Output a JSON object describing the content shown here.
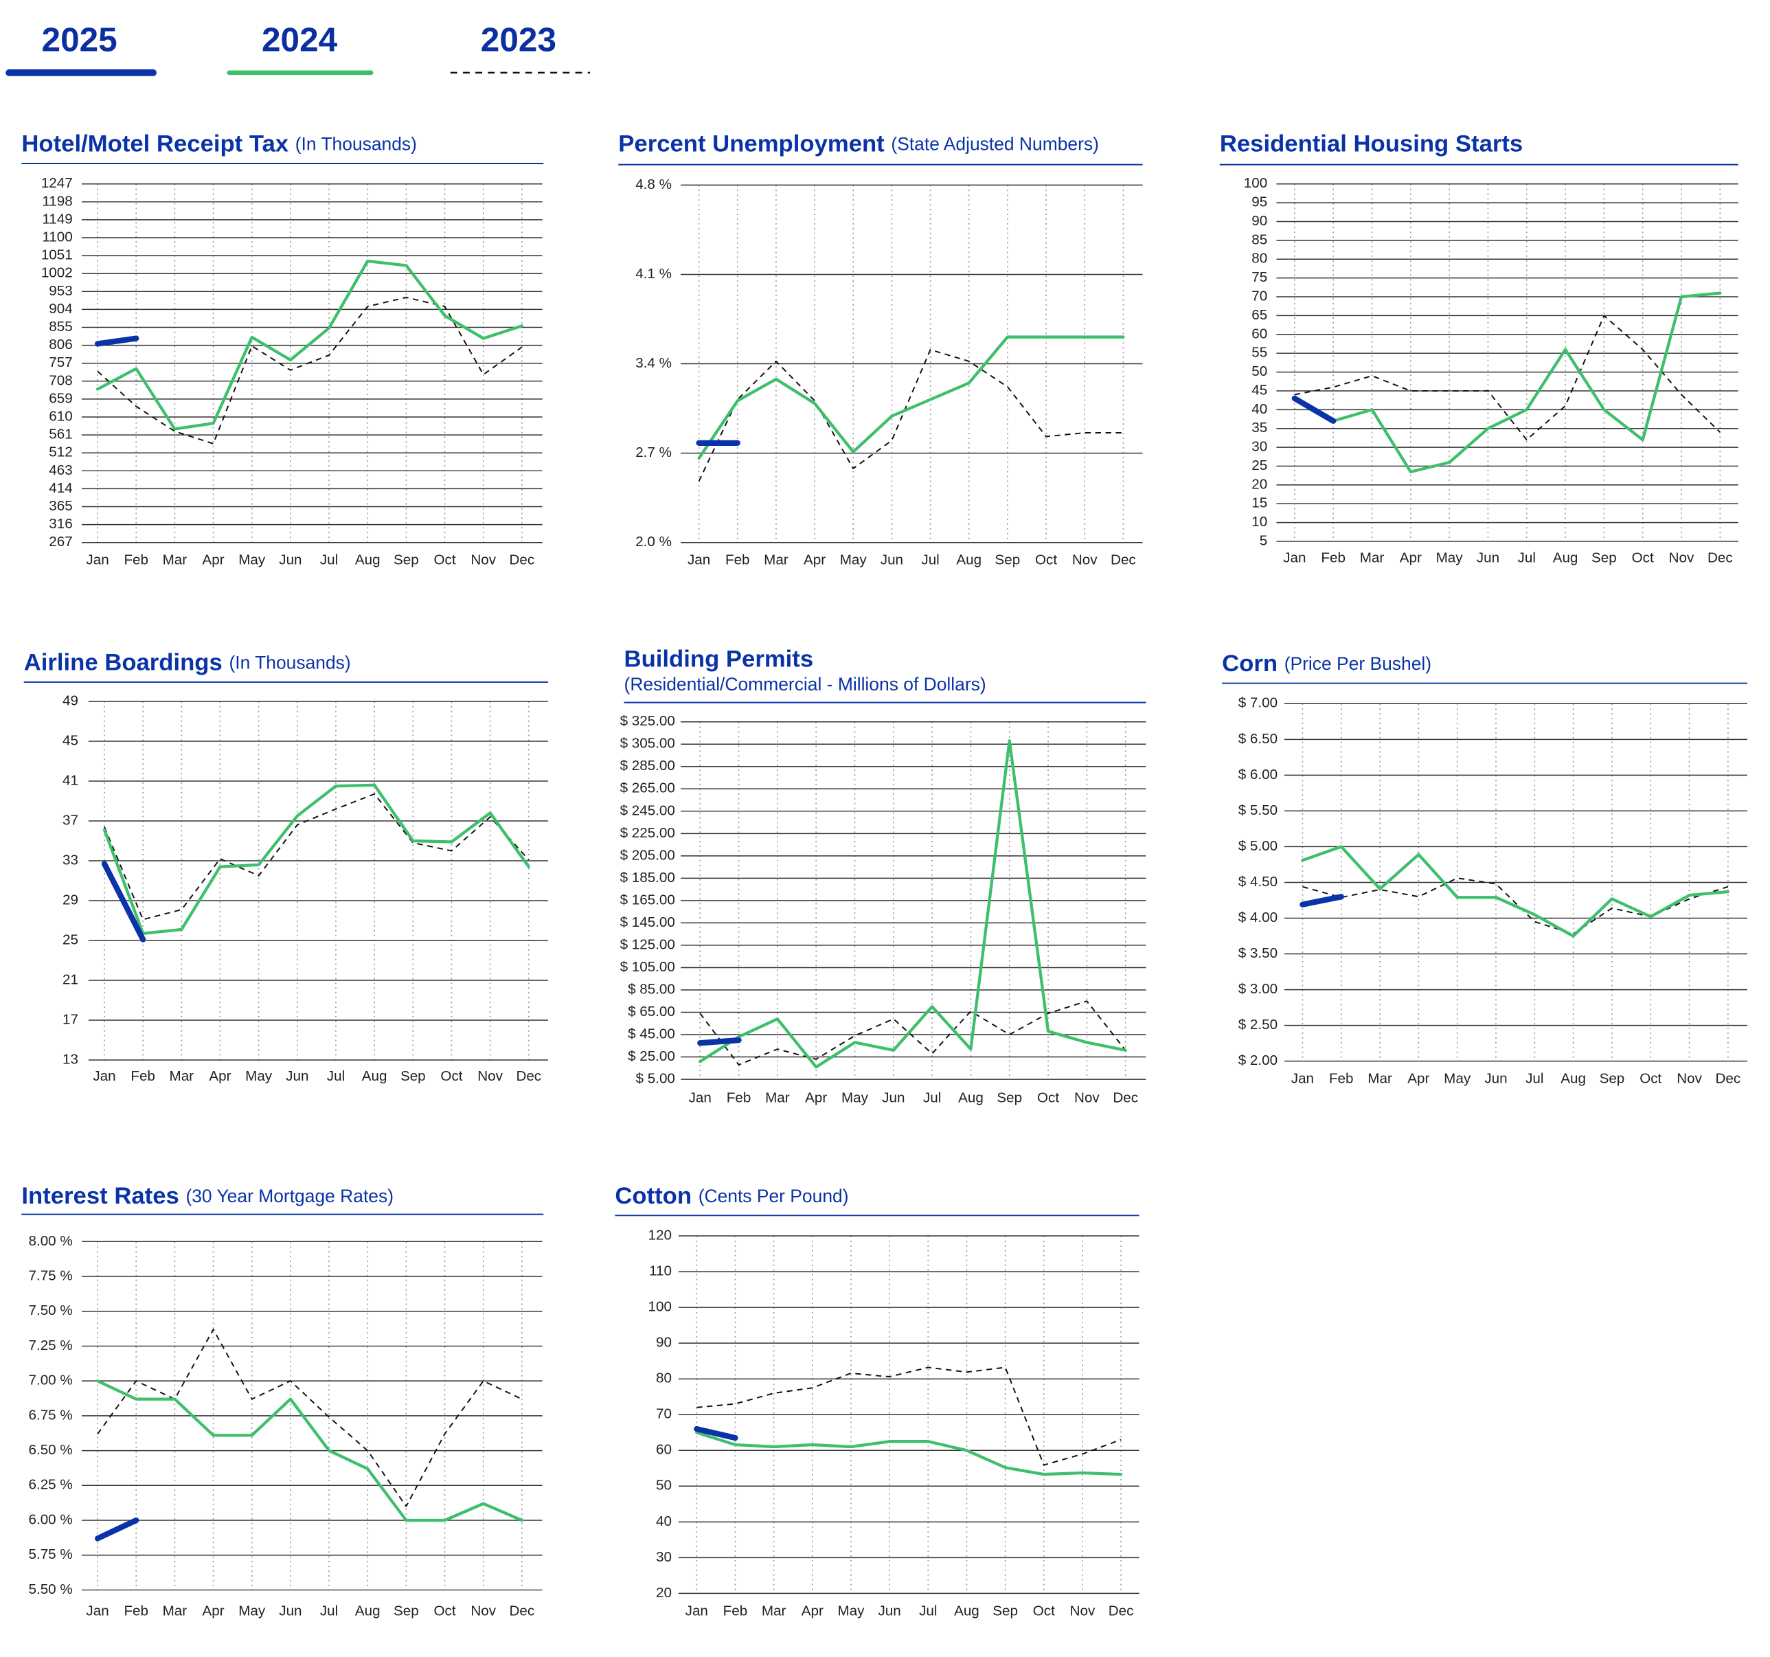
{
  "legend": [
    {
      "name": "2025",
      "color": "#0b33a8",
      "dashed": false
    },
    {
      "name": "2024",
      "color": "#3dbf6b",
      "dashed": false
    },
    {
      "name": "2023",
      "color": "#111111",
      "dashed": true
    }
  ],
  "chart_data": [
    {
      "type": "line",
      "title": "Hotel/Motel Receipt Tax",
      "subtitle": "(In Thousands)",
      "categories": [
        "Jan",
        "Feb",
        "Mar",
        "Apr",
        "May",
        "Jun",
        "Jul",
        "Aug",
        "Sep",
        "Oct",
        "Nov",
        "Dec"
      ],
      "ylim": [
        267,
        1247
      ],
      "yticks": [
        267,
        316,
        365,
        414,
        463,
        512,
        561,
        610,
        659,
        708,
        757,
        806,
        855,
        904,
        953,
        1002,
        1051,
        1100,
        1149,
        1198,
        1247
      ],
      "series": [
        {
          "values": [
            810,
            825,
            null,
            null,
            null,
            null,
            null,
            null,
            null,
            null,
            null,
            null
          ]
        },
        {
          "values": [
            686,
            742,
            577,
            593,
            828,
            766,
            853,
            1036,
            1024,
            887,
            825,
            859
          ]
        },
        {
          "values": [
            735,
            639,
            571,
            537,
            804,
            738,
            779,
            912,
            937,
            912,
            726,
            801
          ]
        }
      ]
    },
    {
      "type": "line",
      "title": "Percent Unemployment",
      "subtitle": "(State Adjusted Numbers)",
      "categories": [
        "Jan",
        "Feb",
        "Mar",
        "Apr",
        "May",
        "Jun",
        "Jul",
        "Aug",
        "Sep",
        "Oct",
        "Nov",
        "Dec"
      ],
      "ylim": [
        2.0,
        4.8
      ],
      "yticks": [
        {
          "value": 2.0,
          "label": "2.0 %"
        },
        {
          "value": 2.7,
          "label": "2.7 %"
        },
        {
          "value": 3.4,
          "label": "3.4 %"
        },
        {
          "value": 4.1,
          "label": "4.1 %"
        },
        {
          "value": 4.8,
          "label": "4.8 %"
        }
      ],
      "series": [
        {
          "values": [
            2.78,
            2.78,
            null,
            null,
            null,
            null,
            null,
            null,
            null,
            null,
            null,
            null
          ]
        },
        {
          "values": [
            2.66,
            3.11,
            3.28,
            3.09,
            2.71,
            2.99,
            3.12,
            3.25,
            3.61,
            3.61,
            3.61,
            3.61
          ]
        },
        {
          "values": [
            2.48,
            3.12,
            3.42,
            3.11,
            2.58,
            2.8,
            3.51,
            3.42,
            3.22,
            2.83,
            2.86,
            2.86
          ]
        }
      ]
    },
    {
      "type": "line",
      "title": "Residential Housing Starts",
      "categories": [
        "Jan",
        "Feb",
        "Mar",
        "Apr",
        "May",
        "Jun",
        "Jul",
        "Aug",
        "Sep",
        "Oct",
        "Nov",
        "Dec"
      ],
      "ylim": [
        5,
        100
      ],
      "yticks": [
        5,
        10,
        15,
        20,
        25,
        30,
        35,
        40,
        45,
        50,
        55,
        60,
        65,
        70,
        75,
        80,
        85,
        90,
        95,
        100
      ],
      "series": [
        {
          "values": [
            43,
            37,
            null,
            null,
            null,
            null,
            null,
            null,
            null,
            null,
            null,
            null
          ]
        },
        {
          "values": [
            43,
            37,
            40,
            23.5,
            26,
            35,
            40,
            56,
            40,
            32,
            70,
            71
          ]
        },
        {
          "values": [
            44,
            46,
            49,
            45,
            45,
            45,
            32,
            41,
            65,
            56,
            44,
            34
          ]
        }
      ]
    },
    {
      "type": "line",
      "title": "Airline Boardings",
      "subtitle": "(In Thousands)",
      "categories": [
        "Jan",
        "Feb",
        "Mar",
        "Apr",
        "May",
        "Jun",
        "Jul",
        "Aug",
        "Sep",
        "Oct",
        "Nov",
        "Dec"
      ],
      "ylim": [
        13,
        49
      ],
      "yticks": [
        13,
        17,
        21,
        25,
        29,
        33,
        37,
        41,
        45,
        49
      ],
      "series": [
        {
          "values": [
            32.7,
            25.1,
            null,
            null,
            null,
            null,
            null,
            null,
            null,
            null,
            null,
            null
          ]
        },
        {
          "values": [
            36.1,
            25.7,
            26.1,
            32.4,
            32.6,
            37.5,
            40.5,
            40.6,
            35,
            34.9,
            37.8,
            32.4
          ]
        },
        {
          "values": [
            36.4,
            27.1,
            28.1,
            33.2,
            31.5,
            36.6,
            38.2,
            39.7,
            34.8,
            34,
            37.4,
            33.1
          ]
        }
      ]
    },
    {
      "type": "line",
      "title": "Building Permits",
      "subtitle": "(Residential/Commercial - Millions of Dollars)",
      "categories": [
        "Jan",
        "Feb",
        "Mar",
        "Apr",
        "May",
        "Jun",
        "Jul",
        "Aug",
        "Sep",
        "Oct",
        "Nov",
        "Dec"
      ],
      "ylim": [
        5,
        325
      ],
      "yticks": [
        {
          "value": 5,
          "label": "$   5.00"
        },
        {
          "value": 25,
          "label": "$ 25.00"
        },
        {
          "value": 45,
          "label": "$ 45.00"
        },
        {
          "value": 65,
          "label": "$ 65.00"
        },
        {
          "value": 85,
          "label": "$ 85.00"
        },
        {
          "value": 105,
          "label": "$ 105.00"
        },
        {
          "value": 125,
          "label": "$ 125.00"
        },
        {
          "value": 145,
          "label": "$ 145.00"
        },
        {
          "value": 165,
          "label": "$ 165.00"
        },
        {
          "value": 185,
          "label": "$ 185.00"
        },
        {
          "value": 205,
          "label": "$ 205.00"
        },
        {
          "value": 225,
          "label": "$ 225.00"
        },
        {
          "value": 245,
          "label": "$ 245.00"
        },
        {
          "value": 265,
          "label": "$ 265.00"
        },
        {
          "value": 285,
          "label": "$ 285.00"
        },
        {
          "value": 305,
          "label": "$ 305.00"
        },
        {
          "value": 325,
          "label": "$ 325.00"
        }
      ],
      "series": [
        {
          "values": [
            37.5,
            40,
            null,
            null,
            null,
            null,
            null,
            null,
            null,
            null,
            null,
            null
          ]
        },
        {
          "values": [
            21,
            43,
            59,
            16,
            38,
            31,
            70,
            32,
            308,
            48,
            38,
            31
          ]
        },
        {
          "values": [
            64,
            18,
            32,
            23,
            44,
            59,
            28,
            66,
            45,
            64,
            75,
            31
          ]
        }
      ]
    },
    {
      "type": "line",
      "title": "Corn",
      "subtitle": "(Price Per Bushel)",
      "categories": [
        "Jan",
        "Feb",
        "Mar",
        "Apr",
        "May",
        "Jun",
        "Jul",
        "Aug",
        "Sep",
        "Oct",
        "Nov",
        "Dec"
      ],
      "ylim": [
        2.0,
        7.0
      ],
      "yticks": [
        {
          "value": 2.0,
          "label": "$ 2.00"
        },
        {
          "value": 2.5,
          "label": "$ 2.50"
        },
        {
          "value": 3.0,
          "label": "$ 3.00"
        },
        {
          "value": 3.5,
          "label": "$ 3.50"
        },
        {
          "value": 4.0,
          "label": "$ 4.00"
        },
        {
          "value": 4.5,
          "label": "$ 4.50"
        },
        {
          "value": 5.0,
          "label": "$ 5.00"
        },
        {
          "value": 5.5,
          "label": "$ 5.50"
        },
        {
          "value": 6.0,
          "label": "$ 6.00"
        },
        {
          "value": 6.5,
          "label": "$ 6.50"
        },
        {
          "value": 7.0,
          "label": "$ 7.00"
        }
      ],
      "series": [
        {
          "values": [
            4.19,
            4.3,
            null,
            null,
            null,
            null,
            null,
            null,
            null,
            null,
            null,
            null
          ]
        },
        {
          "values": [
            4.81,
            5.0,
            4.41,
            4.89,
            4.29,
            4.29,
            4.05,
            3.75,
            4.27,
            4.02,
            4.32,
            4.37
          ]
        },
        {
          "values": [
            4.44,
            4.29,
            4.4,
            4.3,
            4.56,
            4.48,
            3.95,
            3.78,
            4.14,
            4.02,
            4.27,
            4.44
          ]
        }
      ]
    },
    {
      "type": "line",
      "title": "Interest Rates",
      "subtitle": "(30 Year Mortgage Rates)",
      "categories": [
        "Jan",
        "Feb",
        "Mar",
        "Apr",
        "May",
        "Jun",
        "Jul",
        "Aug",
        "Sep",
        "Oct",
        "Nov",
        "Dec"
      ],
      "ylim": [
        5.5,
        8.0
      ],
      "yticks": [
        {
          "value": 5.5,
          "label": "5.50 %"
        },
        {
          "value": 5.75,
          "label": "5.75 %"
        },
        {
          "value": 6.0,
          "label": "6.00 %"
        },
        {
          "value": 6.25,
          "label": "6.25 %"
        },
        {
          "value": 6.5,
          "label": "6.50 %"
        },
        {
          "value": 6.75,
          "label": "6.75 %"
        },
        {
          "value": 7.0,
          "label": "7.00 %"
        },
        {
          "value": 7.25,
          "label": "7.25 %"
        },
        {
          "value": 7.5,
          "label": "7.50 %"
        },
        {
          "value": 7.75,
          "label": "7.75 %"
        },
        {
          "value": 8.0,
          "label": "8.00 %"
        }
      ],
      "series": [
        {
          "values": [
            5.87,
            6.0,
            null,
            null,
            null,
            null,
            null,
            null,
            null,
            null,
            null,
            null
          ]
        },
        {
          "values": [
            7.0,
            6.87,
            6.87,
            6.61,
            6.61,
            6.87,
            6.5,
            6.37,
            6.0,
            6.0,
            6.12,
            6.0
          ]
        },
        {
          "values": [
            6.62,
            7.0,
            6.87,
            7.37,
            6.87,
            7.0,
            6.74,
            6.5,
            6.1,
            6.62,
            7.0,
            6.87
          ]
        }
      ]
    },
    {
      "type": "line",
      "title": "Cotton",
      "subtitle": "(Cents Per Pound)",
      "categories": [
        "Jan",
        "Feb",
        "Mar",
        "Apr",
        "May",
        "Jun",
        "Jul",
        "Aug",
        "Sep",
        "Oct",
        "Nov",
        "Dec"
      ],
      "ylim": [
        20,
        120
      ],
      "yticks": [
        20,
        30,
        40,
        50,
        60,
        70,
        80,
        90,
        100,
        110,
        120
      ],
      "series": [
        {
          "values": [
            66,
            63.5,
            null,
            null,
            null,
            null,
            null,
            null,
            null,
            null,
            null,
            null
          ]
        },
        {
          "values": [
            65,
            61.6,
            61,
            61.6,
            61,
            62.5,
            62.5,
            60,
            55.2,
            53.3,
            53.7,
            53.3
          ]
        },
        {
          "values": [
            72,
            73,
            76,
            77.5,
            81.6,
            80.6,
            83.2,
            81.9,
            83.2,
            55.9,
            59,
            63
          ]
        }
      ]
    }
  ]
}
